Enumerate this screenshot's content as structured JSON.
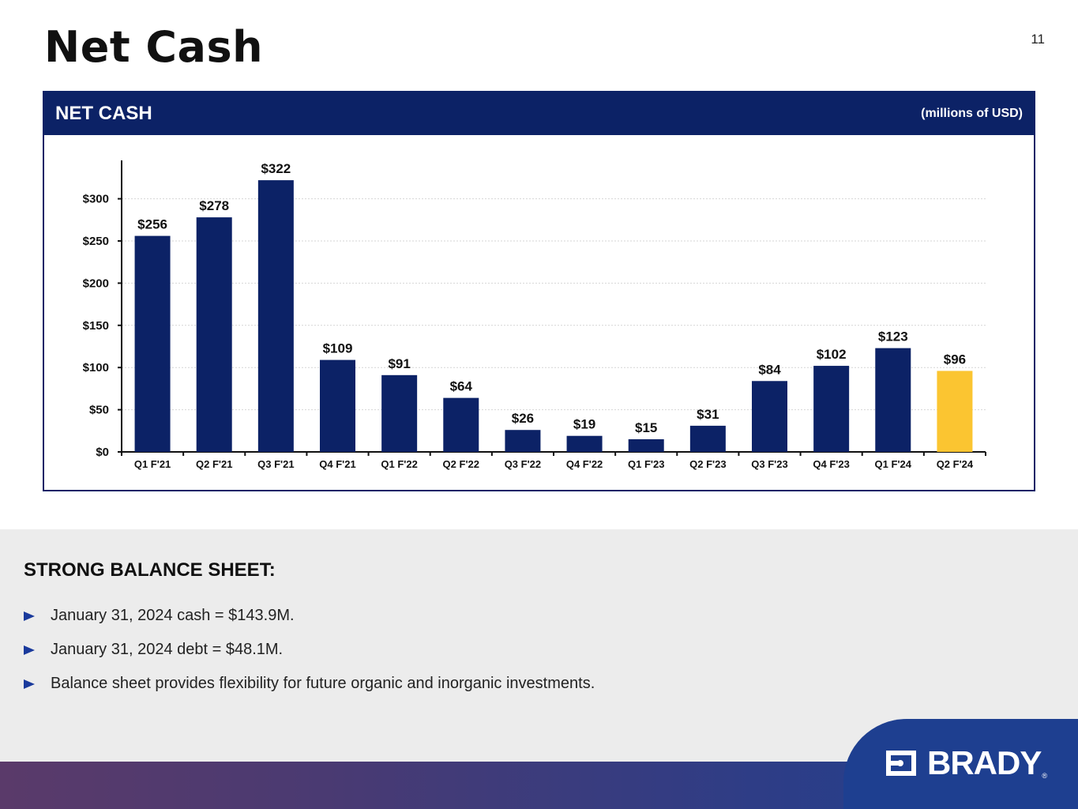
{
  "slide": {
    "title": "Net Cash",
    "page_number": "11"
  },
  "panel": {
    "title": "NET CASH",
    "units": "(millions of USD)"
  },
  "chart_data": {
    "type": "bar",
    "title": "NET CASH",
    "ylabel": "",
    "xlabel": "",
    "ylim": [
      0,
      340
    ],
    "yticks": [
      0,
      50,
      100,
      150,
      200,
      250,
      300
    ],
    "ytick_labels": [
      "$0",
      "$50",
      "$100",
      "$150",
      "$200",
      "$250",
      "$300"
    ],
    "grid": true,
    "categories": [
      "Q1 F'21",
      "Q2 F'21",
      "Q3 F'21",
      "Q4 F'21",
      "Q1 F'22",
      "Q2 F'22",
      "Q3 F'22",
      "Q4 F'22",
      "Q1 F'23",
      "Q2 F'23",
      "Q3 F'23",
      "Q4 F'23",
      "Q1 F'24",
      "Q2 F'24"
    ],
    "values": [
      256,
      278,
      322,
      109,
      91,
      64,
      26,
      19,
      15,
      31,
      84,
      102,
      123,
      96
    ],
    "value_labels": [
      "$256",
      "$278",
      "$322",
      "$109",
      "$91",
      "$64",
      "$26",
      "$19",
      "$15",
      "$31",
      "$84",
      "$102",
      "$123",
      "$96"
    ],
    "colors": {
      "default": "#0c2266",
      "highlight": "#fbc531"
    },
    "highlight_index": 13
  },
  "balance": {
    "heading": "STRONG BALANCE SHEET:",
    "bullets": [
      "January 31, 2024 cash = $143.9M.",
      "January 31, 2024 debt = $48.1M.",
      "Balance sheet provides flexibility for future organic and inorganic investments."
    ]
  },
  "logo": {
    "text": "BRADY",
    "icon": "brady-logo-icon",
    "mark": "®"
  }
}
